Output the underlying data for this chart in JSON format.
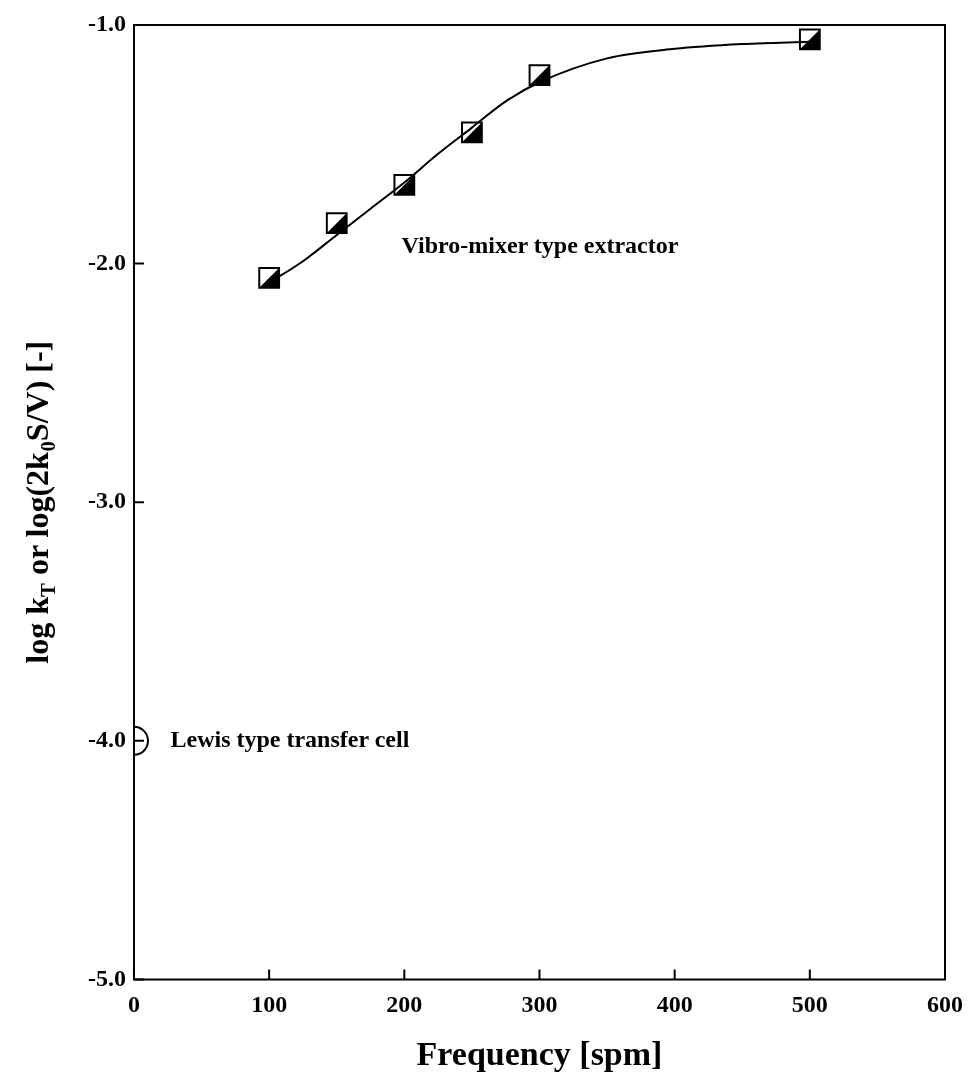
{
  "chart_data": {
    "type": "scatter",
    "xlabel": "Frequency [spm]",
    "ylabel": "log k$_{T}$ or log(2k$_{0}$S/V) [-]",
    "xlim": [
      0,
      600
    ],
    "xticks": [
      0,
      100,
      200,
      300,
      400,
      500,
      600
    ],
    "ylim": [
      -5,
      -1
    ],
    "yticks": [
      {
        "value": -5,
        "label": "-5.0"
      },
      {
        "value": -4,
        "label": "-4.0"
      },
      {
        "value": -3,
        "label": "-3.0"
      },
      {
        "value": -2,
        "label": "-2.0"
      },
      {
        "value": -1,
        "label": "-1.0"
      }
    ],
    "grid": false,
    "legend": false,
    "series": [
      {
        "type": "line",
        "color": "#000000",
        "marker": "none",
        "line_style": "solid",
        "x": [
          100,
          125,
          150,
          175,
          200,
          225,
          250,
          275,
          300,
          350,
          400,
          450,
          500
        ],
        "values": [
          -2.08,
          -1.99,
          -1.88,
          -1.77,
          -1.66,
          -1.54,
          -1.43,
          -1.32,
          -1.24,
          -1.14,
          -1.1,
          -1.08,
          -1.07
        ]
      },
      {
        "color": "#000000",
        "marker": "square",
        "x": [
          100,
          150,
          200,
          250,
          300,
          500
        ],
        "values": [
          -2.06,
          -1.83,
          -1.67,
          -1.45,
          -1.21,
          -1.06
        ]
      },
      {
        "color": "#000000",
        "marker": "circle",
        "x": [
          0
        ],
        "values": [
          -4.0
        ]
      }
    ],
    "annotations": [
      "Vibro-mixer type extractor",
      "Lewis type transfer cell"
    ]
  }
}
